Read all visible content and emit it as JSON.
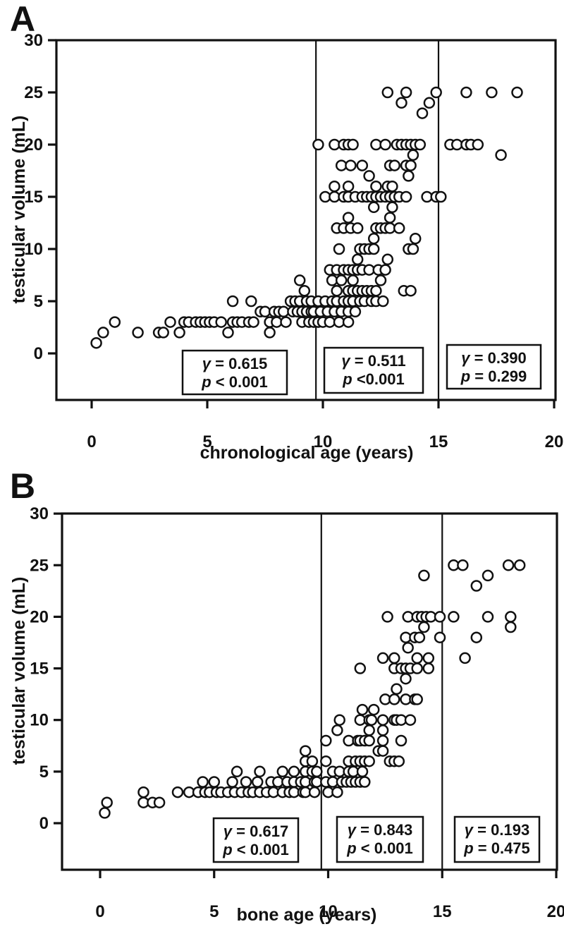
{
  "figure": {
    "panels": [
      {
        "letter": "A",
        "xlabel": "chronological age (years)",
        "ylabel": "testicular volume (mL)"
      },
      {
        "letter": "B",
        "xlabel": "bone age (years)",
        "ylabel": "testicular volume (mL)"
      }
    ]
  },
  "chart_data": [
    {
      "type": "scatter",
      "panel": "A",
      "title": "",
      "xlabel": "chronological age (years)",
      "ylabel": "testicular volume (mL)",
      "xticks": [
        0,
        5,
        10,
        15,
        20
      ],
      "yticks": [
        0,
        5,
        10,
        15,
        20,
        25,
        30
      ],
      "xlim": [
        -1.5,
        20.1
      ],
      "ylim": [
        -4.5,
        30
      ],
      "grid": false,
      "marker": "open-circle",
      "vlines": [
        9.7,
        15
      ],
      "annotations": [
        {
          "line1": "γ = 0.615",
          "line2": "p < 0.001"
        },
        {
          "line1": "γ = 0.511",
          "line2": "p <0.001"
        },
        {
          "line1": "γ = 0.390",
          "line2": "p = 0.299"
        }
      ],
      "points": [
        [
          0.2,
          1
        ],
        [
          0.5,
          2
        ],
        [
          1.0,
          3
        ],
        [
          2.0,
          2
        ],
        [
          2.9,
          2
        ],
        [
          3.1,
          2
        ],
        [
          3.4,
          3
        ],
        [
          3.8,
          2
        ],
        [
          4.0,
          3
        ],
        [
          4.2,
          3
        ],
        [
          4.5,
          3
        ],
        [
          4.7,
          3
        ],
        [
          4.9,
          3
        ],
        [
          5.1,
          3
        ],
        [
          5.3,
          3
        ],
        [
          5.6,
          3
        ],
        [
          5.9,
          2
        ],
        [
          6.1,
          5
        ],
        [
          6.1,
          3
        ],
        [
          6.3,
          3
        ],
        [
          6.5,
          3
        ],
        [
          6.8,
          3
        ],
        [
          6.9,
          5
        ],
        [
          7.0,
          3
        ],
        [
          7.3,
          4
        ],
        [
          7.5,
          4
        ],
        [
          7.7,
          2
        ],
        [
          7.7,
          3
        ],
        [
          7.9,
          4
        ],
        [
          8.0,
          3
        ],
        [
          8.1,
          4
        ],
        [
          8.3,
          4
        ],
        [
          8.4,
          3
        ],
        [
          8.6,
          5
        ],
        [
          8.7,
          4
        ],
        [
          8.8,
          5
        ],
        [
          8.9,
          4
        ],
        [
          9.0,
          7
        ],
        [
          9.0,
          5
        ],
        [
          9.1,
          4
        ],
        [
          9.1,
          3
        ],
        [
          9.2,
          6
        ],
        [
          9.3,
          5
        ],
        [
          9.3,
          4
        ],
        [
          9.4,
          3
        ],
        [
          9.5,
          5
        ],
        [
          9.5,
          4
        ],
        [
          9.6,
          4
        ],
        [
          9.6,
          3
        ],
        [
          9.8,
          3
        ],
        [
          10.0,
          3
        ],
        [
          10.3,
          3
        ],
        [
          10.7,
          3
        ],
        [
          11.1,
          3
        ],
        [
          9.9,
          4
        ],
        [
          10.2,
          4
        ],
        [
          10.5,
          4
        ],
        [
          10.8,
          4
        ],
        [
          11.1,
          4
        ],
        [
          11.4,
          4
        ],
        [
          9.8,
          5
        ],
        [
          10.1,
          5
        ],
        [
          10.4,
          5
        ],
        [
          10.6,
          5
        ],
        [
          10.9,
          5
        ],
        [
          11.1,
          5
        ],
        [
          11.3,
          5
        ],
        [
          11.6,
          5
        ],
        [
          11.8,
          5
        ],
        [
          12.1,
          5
        ],
        [
          12.3,
          5
        ],
        [
          12.6,
          5
        ],
        [
          10.6,
          6
        ],
        [
          11.1,
          6
        ],
        [
          11.3,
          6
        ],
        [
          11.5,
          6
        ],
        [
          11.7,
          6
        ],
        [
          11.9,
          6
        ],
        [
          12.1,
          6
        ],
        [
          12.3,
          6
        ],
        [
          13.5,
          6
        ],
        [
          13.8,
          6
        ],
        [
          10.4,
          7
        ],
        [
          10.8,
          7
        ],
        [
          11.3,
          7
        ],
        [
          12.5,
          7
        ],
        [
          10.3,
          8
        ],
        [
          10.6,
          8
        ],
        [
          10.9,
          8
        ],
        [
          11.1,
          8
        ],
        [
          11.3,
          8
        ],
        [
          11.5,
          8
        ],
        [
          11.7,
          8
        ],
        [
          12.0,
          8
        ],
        [
          12.4,
          8
        ],
        [
          12.7,
          8
        ],
        [
          11.5,
          9
        ],
        [
          12.8,
          9
        ],
        [
          10.7,
          10
        ],
        [
          11.6,
          10
        ],
        [
          11.8,
          10
        ],
        [
          12.0,
          10
        ],
        [
          12.2,
          10
        ],
        [
          13.7,
          10
        ],
        [
          13.9,
          10
        ],
        [
          12.2,
          11
        ],
        [
          14.0,
          11
        ],
        [
          10.6,
          12
        ],
        [
          10.9,
          12
        ],
        [
          11.2,
          12
        ],
        [
          11.5,
          12
        ],
        [
          12.3,
          12
        ],
        [
          12.5,
          12
        ],
        [
          12.7,
          12
        ],
        [
          12.9,
          12
        ],
        [
          13.3,
          12
        ],
        [
          11.1,
          13
        ],
        [
          12.9,
          13
        ],
        [
          12.2,
          14
        ],
        [
          13.0,
          14
        ],
        [
          10.1,
          15
        ],
        [
          10.5,
          15
        ],
        [
          10.9,
          15
        ],
        [
          11.1,
          15
        ],
        [
          11.4,
          15
        ],
        [
          11.7,
          15
        ],
        [
          11.9,
          15
        ],
        [
          12.1,
          15
        ],
        [
          12.3,
          15
        ],
        [
          12.5,
          15
        ],
        [
          12.7,
          15
        ],
        [
          12.9,
          15
        ],
        [
          13.1,
          15
        ],
        [
          13.3,
          15
        ],
        [
          13.6,
          15
        ],
        [
          14.5,
          15
        ],
        [
          14.9,
          15
        ],
        [
          10.5,
          16
        ],
        [
          11.1,
          16
        ],
        [
          12.3,
          16
        ],
        [
          12.8,
          16
        ],
        [
          13.0,
          16
        ],
        [
          12.0,
          17
        ],
        [
          13.7,
          17
        ],
        [
          10.8,
          18
        ],
        [
          11.2,
          18
        ],
        [
          11.7,
          18
        ],
        [
          12.9,
          18
        ],
        [
          13.1,
          18
        ],
        [
          13.6,
          18
        ],
        [
          13.8,
          18
        ],
        [
          13.9,
          19
        ],
        [
          9.8,
          20
        ],
        [
          10.5,
          20
        ],
        [
          10.9,
          20
        ],
        [
          11.1,
          20
        ],
        [
          11.3,
          20
        ],
        [
          12.3,
          20
        ],
        [
          12.7,
          20
        ],
        [
          13.2,
          20
        ],
        [
          13.4,
          20
        ],
        [
          13.6,
          20
        ],
        [
          13.8,
          20
        ],
        [
          14.0,
          20
        ],
        [
          14.2,
          20
        ],
        [
          14.3,
          23
        ],
        [
          13.4,
          24
        ],
        [
          14.6,
          24
        ],
        [
          12.8,
          25
        ],
        [
          13.6,
          25
        ],
        [
          14.9,
          25
        ],
        [
          15.1,
          15
        ],
        [
          15.5,
          20
        ],
        [
          15.8,
          20
        ],
        [
          16.2,
          20
        ],
        [
          16.4,
          20
        ],
        [
          16.7,
          20
        ],
        [
          17.7,
          19
        ],
        [
          16.2,
          25
        ],
        [
          17.3,
          25
        ],
        [
          18.4,
          25
        ]
      ]
    },
    {
      "type": "scatter",
      "panel": "B",
      "title": "",
      "xlabel": "bone age (years)",
      "ylabel": "testicular volume (mL)",
      "xticks": [
        0,
        5,
        10,
        15,
        20
      ],
      "yticks": [
        0,
        5,
        10,
        15,
        20,
        25,
        30
      ],
      "xlim": [
        -1.7,
        20.1
      ],
      "ylim": [
        -4.5,
        30
      ],
      "grid": false,
      "marker": "open-circle",
      "vlines": [
        9.7,
        15
      ],
      "annotations": [
        {
          "line1": "γ = 0.617",
          "line2": "p < 0.001"
        },
        {
          "line1": "γ = 0.843",
          "line2": "p < 0.001"
        },
        {
          "line1": "γ = 0.193",
          "line2": "p = 0.475"
        }
      ],
      "points": [
        [
          0.2,
          1
        ],
        [
          0.3,
          2
        ],
        [
          1.9,
          3
        ],
        [
          1.9,
          2
        ],
        [
          2.3,
          2
        ],
        [
          2.6,
          2
        ],
        [
          3.4,
          3
        ],
        [
          3.9,
          3
        ],
        [
          4.3,
          3
        ],
        [
          4.5,
          4
        ],
        [
          4.6,
          3
        ],
        [
          4.8,
          3
        ],
        [
          5.0,
          4
        ],
        [
          5.1,
          3
        ],
        [
          5.3,
          3
        ],
        [
          5.6,
          3
        ],
        [
          5.8,
          4
        ],
        [
          5.9,
          3
        ],
        [
          6.0,
          5
        ],
        [
          6.2,
          3
        ],
        [
          6.4,
          4
        ],
        [
          6.5,
          3
        ],
        [
          6.7,
          3
        ],
        [
          6.9,
          4
        ],
        [
          7.0,
          5
        ],
        [
          7.0,
          3
        ],
        [
          7.3,
          3
        ],
        [
          7.5,
          4
        ],
        [
          7.6,
          3
        ],
        [
          7.8,
          4
        ],
        [
          8.0,
          5
        ],
        [
          8.0,
          3
        ],
        [
          8.2,
          4
        ],
        [
          8.3,
          3
        ],
        [
          8.5,
          5
        ],
        [
          8.5,
          4
        ],
        [
          8.5,
          3
        ],
        [
          8.8,
          4
        ],
        [
          8.9,
          3
        ],
        [
          9.0,
          7
        ],
        [
          9.0,
          6
        ],
        [
          9.0,
          5
        ],
        [
          9.0,
          4
        ],
        [
          9.0,
          3
        ],
        [
          9.3,
          6
        ],
        [
          9.3,
          5
        ],
        [
          9.4,
          4
        ],
        [
          9.4,
          3
        ],
        [
          9.5,
          5
        ],
        [
          9.5,
          4
        ],
        [
          10.0,
          3
        ],
        [
          10.4,
          3
        ],
        [
          9.9,
          4
        ],
        [
          10.2,
          4
        ],
        [
          10.6,
          4
        ],
        [
          10.8,
          4
        ],
        [
          11.0,
          4
        ],
        [
          11.2,
          4
        ],
        [
          11.4,
          4
        ],
        [
          11.6,
          4
        ],
        [
          10.2,
          5
        ],
        [
          10.5,
          5
        ],
        [
          10.9,
          5
        ],
        [
          11.1,
          5
        ],
        [
          11.5,
          5
        ],
        [
          9.9,
          6
        ],
        [
          10.9,
          6
        ],
        [
          11.2,
          6
        ],
        [
          11.4,
          6
        ],
        [
          11.6,
          6
        ],
        [
          11.8,
          6
        ],
        [
          12.7,
          6
        ],
        [
          12.9,
          6
        ],
        [
          13.1,
          6
        ],
        [
          12.2,
          7
        ],
        [
          12.4,
          7
        ],
        [
          9.9,
          8
        ],
        [
          10.9,
          8
        ],
        [
          11.3,
          8
        ],
        [
          11.4,
          8
        ],
        [
          11.6,
          8
        ],
        [
          11.8,
          8
        ],
        [
          12.4,
          8
        ],
        [
          13.2,
          8
        ],
        [
          10.4,
          9
        ],
        [
          11.8,
          9
        ],
        [
          12.4,
          9
        ],
        [
          10.5,
          10
        ],
        [
          11.4,
          10
        ],
        [
          11.8,
          10
        ],
        [
          11.9,
          10
        ],
        [
          12.4,
          10
        ],
        [
          12.9,
          10
        ],
        [
          13.0,
          10
        ],
        [
          13.2,
          10
        ],
        [
          13.6,
          10
        ],
        [
          11.5,
          11
        ],
        [
          12.0,
          11
        ],
        [
          12.5,
          12
        ],
        [
          12.9,
          12
        ],
        [
          13.4,
          12
        ],
        [
          13.8,
          12
        ],
        [
          13.9,
          12
        ],
        [
          13.0,
          13
        ],
        [
          13.4,
          14
        ],
        [
          11.4,
          15
        ],
        [
          12.9,
          15
        ],
        [
          13.2,
          15
        ],
        [
          13.4,
          15
        ],
        [
          13.6,
          15
        ],
        [
          13.9,
          15
        ],
        [
          14.4,
          15
        ],
        [
          12.4,
          16
        ],
        [
          12.9,
          16
        ],
        [
          13.9,
          16
        ],
        [
          14.4,
          16
        ],
        [
          13.5,
          17
        ],
        [
          13.4,
          18
        ],
        [
          13.8,
          18
        ],
        [
          14.0,
          18
        ],
        [
          14.9,
          18
        ],
        [
          14.2,
          19
        ],
        [
          12.6,
          20
        ],
        [
          13.5,
          20
        ],
        [
          13.9,
          20
        ],
        [
          14.1,
          20
        ],
        [
          14.3,
          20
        ],
        [
          14.5,
          20
        ],
        [
          14.9,
          20
        ],
        [
          14.2,
          24
        ],
        [
          15.5,
          25
        ],
        [
          15.9,
          25
        ],
        [
          17.9,
          25
        ],
        [
          18.4,
          25
        ],
        [
          17.0,
          24
        ],
        [
          16.5,
          23
        ],
        [
          15.5,
          20
        ],
        [
          17.0,
          20
        ],
        [
          18.0,
          20
        ],
        [
          18.0,
          19
        ],
        [
          16.5,
          18
        ],
        [
          16.0,
          16
        ]
      ]
    }
  ]
}
